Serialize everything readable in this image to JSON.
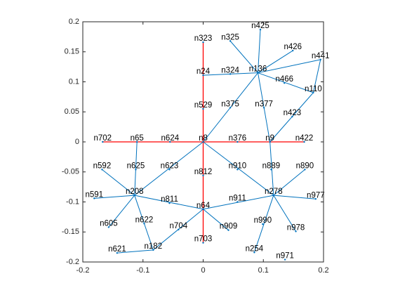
{
  "chart_data": {
    "type": "graph",
    "xlim": [
      -0.2,
      0.2
    ],
    "ylim": [
      -0.2,
      0.2
    ],
    "xticks": [
      -0.2,
      -0.1,
      0,
      0.1,
      0.2
    ],
    "yticks": [
      -0.2,
      -0.15,
      -0.1,
      -0.05,
      0,
      0.05,
      0.1,
      0.15,
      0.2
    ],
    "edge_color": "#0072bd",
    "highlight_color": "#ff0000",
    "nodes": [
      {
        "name": "n425",
        "x": 0.095,
        "y": 0.187
      },
      {
        "name": "n325",
        "x": 0.045,
        "y": 0.168
      },
      {
        "name": "n323",
        "x": 0,
        "y": 0.166
      },
      {
        "name": "n426",
        "x": 0.149,
        "y": 0.152
      },
      {
        "name": "n441",
        "x": 0.195,
        "y": 0.137
      },
      {
        "name": "n24",
        "x": 0,
        "y": 0.111
      },
      {
        "name": "n324",
        "x": 0.045,
        "y": 0.113
      },
      {
        "name": "n136",
        "x": 0.091,
        "y": 0.115
      },
      {
        "name": "n466",
        "x": 0.135,
        "y": 0.098
      },
      {
        "name": "n110",
        "x": 0.183,
        "y": 0.082
      },
      {
        "name": "n529",
        "x": 0,
        "y": 0.055
      },
      {
        "name": "n375",
        "x": 0.045,
        "y": 0.057
      },
      {
        "name": "n377",
        "x": 0.101,
        "y": 0.057
      },
      {
        "name": "n423",
        "x": 0.148,
        "y": 0.042
      },
      {
        "name": "n702",
        "x": -0.167,
        "y": 0
      },
      {
        "name": "n65",
        "x": -0.11,
        "y": 0
      },
      {
        "name": "n624",
        "x": -0.055,
        "y": 0
      },
      {
        "name": "n8",
        "x": 0,
        "y": 0
      },
      {
        "name": "n376",
        "x": 0.057,
        "y": 0
      },
      {
        "name": "n9",
        "x": 0.111,
        "y": 0
      },
      {
        "name": "n422",
        "x": 0.168,
        "y": 0
      },
      {
        "name": "n592",
        "x": -0.168,
        "y": -0.046
      },
      {
        "name": "n625",
        "x": -0.112,
        "y": -0.046
      },
      {
        "name": "n623",
        "x": -0.056,
        "y": -0.046
      },
      {
        "name": "n812",
        "x": 0,
        "y": -0.056
      },
      {
        "name": "n910",
        "x": 0.057,
        "y": -0.046
      },
      {
        "name": "n889",
        "x": 0.113,
        "y": -0.046
      },
      {
        "name": "n890",
        "x": 0.169,
        "y": -0.046
      },
      {
        "name": "n591",
        "x": -0.181,
        "y": -0.094
      },
      {
        "name": "n208",
        "x": -0.114,
        "y": -0.089
      },
      {
        "name": "n811",
        "x": -0.056,
        "y": -0.102
      },
      {
        "name": "n911",
        "x": 0.057,
        "y": -0.1
      },
      {
        "name": "n278",
        "x": 0.117,
        "y": -0.089
      },
      {
        "name": "n977",
        "x": 0.187,
        "y": -0.095
      },
      {
        "name": "n64",
        "x": 0,
        "y": -0.112
      },
      {
        "name": "n605",
        "x": -0.157,
        "y": -0.142
      },
      {
        "name": "n622",
        "x": -0.098,
        "y": -0.136
      },
      {
        "name": "n704",
        "x": -0.041,
        "y": -0.146
      },
      {
        "name": "n909",
        "x": 0.042,
        "y": -0.147
      },
      {
        "name": "n990",
        "x": 0.099,
        "y": -0.137
      },
      {
        "name": "n978",
        "x": 0.154,
        "y": -0.149
      },
      {
        "name": "n703",
        "x": 0,
        "y": -0.168
      },
      {
        "name": "n621",
        "x": -0.143,
        "y": -0.185
      },
      {
        "name": "n182",
        "x": -0.083,
        "y": -0.18
      },
      {
        "name": "n254",
        "x": 0.085,
        "y": -0.184
      },
      {
        "name": "n971",
        "x": 0.136,
        "y": -0.196
      }
    ],
    "edges": [
      [
        7,
        0
      ],
      [
        7,
        1
      ],
      [
        7,
        3
      ],
      [
        7,
        4
      ],
      [
        7,
        9
      ],
      [
        7,
        5
      ],
      [
        7,
        17
      ],
      [
        7,
        19
      ],
      [
        9,
        4
      ],
      [
        9,
        19
      ],
      [
        29,
        15
      ],
      [
        29,
        17
      ],
      [
        29,
        34
      ],
      [
        29,
        43
      ],
      [
        29,
        28
      ],
      [
        29,
        21
      ],
      [
        29,
        35
      ],
      [
        34,
        32
      ],
      [
        34,
        43
      ],
      [
        34,
        38
      ],
      [
        32,
        19
      ],
      [
        32,
        17
      ],
      [
        32,
        33
      ],
      [
        32,
        44
      ],
      [
        32,
        40
      ],
      [
        32,
        27
      ],
      [
        43,
        42
      ]
    ],
    "highlighted_edges": [
      [
        14,
        15
      ],
      [
        15,
        16
      ],
      [
        16,
        17
      ],
      [
        17,
        18
      ],
      [
        18,
        19
      ],
      [
        19,
        20
      ],
      [
        2,
        5
      ],
      [
        5,
        10
      ],
      [
        10,
        17
      ],
      [
        17,
        24
      ],
      [
        24,
        34
      ],
      [
        34,
        41
      ]
    ]
  }
}
